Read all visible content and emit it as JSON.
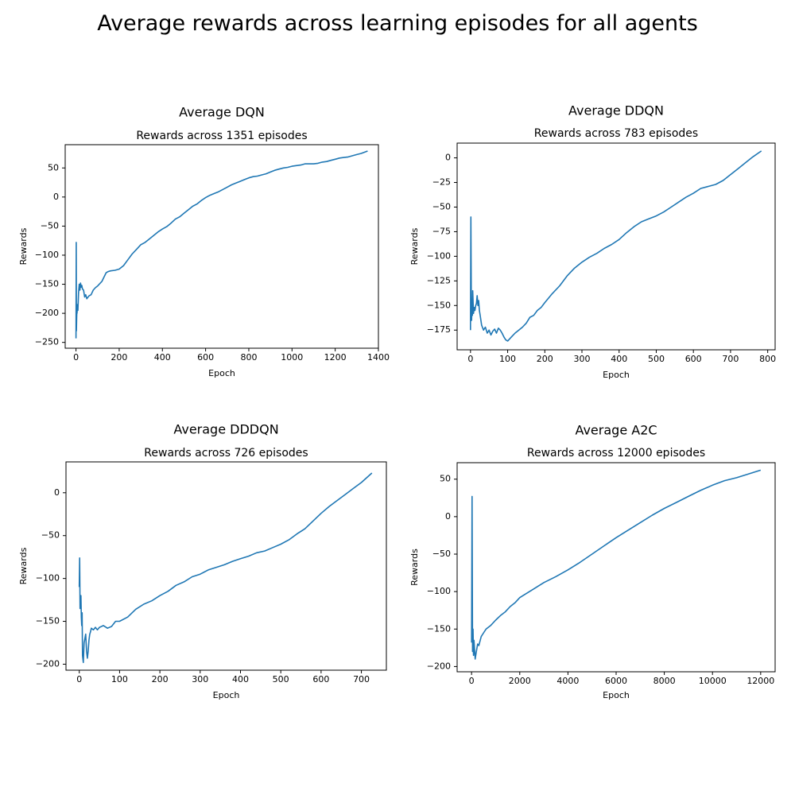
{
  "figure_title": "Average rewards across learning episodes for all agents",
  "colors": {
    "line": "#1f77b4",
    "axis": "#000000",
    "background": "#ffffff"
  },
  "chart_data": [
    {
      "type": "line",
      "suptitle": "Average DQN",
      "title": "Rewards across 1351 episodes",
      "xlabel": "Epoch",
      "ylabel": "Rewards",
      "xlim": [
        -50,
        1400
      ],
      "ylim": [
        -260,
        90
      ],
      "xticks": [
        0,
        200,
        400,
        600,
        800,
        1000,
        1200,
        1400
      ],
      "yticks": [
        -250,
        -200,
        -150,
        -100,
        -50,
        0,
        50
      ],
      "grid": false,
      "series": [
        {
          "x": [
            0,
            1,
            2,
            3,
            4,
            5,
            7,
            9,
            12,
            15,
            18,
            21,
            24,
            27,
            30,
            35,
            40,
            45,
            50,
            60,
            70,
            80,
            90,
            100,
            120,
            140,
            150,
            160,
            180,
            200,
            220,
            240,
            260,
            280,
            300,
            320,
            340,
            360,
            380,
            400,
            420,
            440,
            460,
            480,
            500,
            520,
            540,
            560,
            580,
            600,
            620,
            640,
            660,
            680,
            700,
            720,
            740,
            760,
            780,
            800,
            820,
            840,
            860,
            880,
            900,
            920,
            940,
            960,
            980,
            1000,
            1020,
            1040,
            1060,
            1080,
            1100,
            1120,
            1140,
            1160,
            1180,
            1200,
            1220,
            1240,
            1260,
            1280,
            1300,
            1320,
            1350
          ],
          "y": [
            -243,
            -78,
            -230,
            -210,
            -195,
            -200,
            -185,
            -195,
            -165,
            -150,
            -160,
            -148,
            -155,
            -152,
            -158,
            -160,
            -172,
            -168,
            -175,
            -170,
            -168,
            -160,
            -156,
            -153,
            -145,
            -130,
            -128,
            -127,
            -126,
            -124,
            -118,
            -108,
            -98,
            -90,
            -82,
            -78,
            -72,
            -66,
            -60,
            -55,
            -51,
            -45,
            -38,
            -34,
            -28,
            -22,
            -16,
            -12,
            -6,
            -1,
            3,
            6,
            9,
            13,
            17,
            21,
            24,
            27,
            30,
            33,
            35,
            36,
            38,
            40,
            43,
            46,
            48,
            50,
            51,
            53,
            54,
            55,
            57,
            57,
            57,
            58,
            60,
            61,
            63,
            65,
            67,
            68,
            69,
            71,
            73,
            75,
            79
          ]
        }
      ]
    },
    {
      "type": "line",
      "suptitle": "Average DDQN",
      "title": "Rewards across 783 episodes",
      "xlabel": "Epoch",
      "ylabel": "Rewards",
      "xlim": [
        -36,
        820
      ],
      "ylim": [
        -195,
        15
      ],
      "xticks": [
        0,
        100,
        200,
        300,
        400,
        500,
        600,
        700,
        800
      ],
      "yticks": [
        -175,
        -150,
        -125,
        -100,
        -75,
        -50,
        -25,
        0
      ],
      "grid": false,
      "series": [
        {
          "x": [
            0,
            1,
            2,
            3,
            4,
            5,
            6,
            8,
            10,
            12,
            14,
            16,
            18,
            20,
            22,
            24,
            26,
            28,
            30,
            35,
            40,
            45,
            50,
            55,
            60,
            65,
            70,
            75,
            80,
            85,
            90,
            95,
            100,
            110,
            120,
            130,
            140,
            150,
            160,
            170,
            180,
            190,
            200,
            220,
            240,
            260,
            280,
            300,
            320,
            340,
            360,
            380,
            400,
            420,
            440,
            460,
            480,
            500,
            520,
            540,
            560,
            580,
            600,
            620,
            640,
            660,
            680,
            700,
            720,
            740,
            760,
            783
          ],
          "y": [
            -175,
            -60,
            -140,
            -165,
            -148,
            -160,
            -135,
            -158,
            -152,
            -155,
            -150,
            -148,
            -140,
            -150,
            -145,
            -155,
            -160,
            -165,
            -170,
            -175,
            -172,
            -178,
            -175,
            -180,
            -176,
            -174,
            -178,
            -173,
            -175,
            -178,
            -182,
            -185,
            -186,
            -182,
            -178,
            -175,
            -172,
            -168,
            -162,
            -160,
            -155,
            -152,
            -147,
            -138,
            -130,
            -120,
            -112,
            -106,
            -101,
            -97,
            -92,
            -88,
            -83,
            -76,
            -70,
            -65,
            -62,
            -59,
            -55,
            -50,
            -45,
            -40,
            -36,
            -31,
            -29,
            -27,
            -23,
            -17,
            -11,
            -5,
            1,
            7
          ]
        }
      ]
    },
    {
      "type": "line",
      "suptitle": "Average DDDQN",
      "title": "Rewards across 726 episodes",
      "xlabel": "Epoch",
      "ylabel": "Rewards",
      "xlim": [
        -33,
        762
      ],
      "ylim": [
        -207,
        36
      ],
      "xticks": [
        0,
        100,
        200,
        300,
        400,
        500,
        600,
        700
      ],
      "yticks": [
        -200,
        -150,
        -100,
        -50,
        0
      ],
      "grid": false,
      "series": [
        {
          "x": [
            0,
            1,
            2,
            3,
            4,
            5,
            6,
            7,
            8,
            10,
            12,
            14,
            16,
            18,
            20,
            22,
            24,
            26,
            28,
            30,
            35,
            40,
            45,
            50,
            60,
            70,
            80,
            90,
            100,
            120,
            140,
            160,
            180,
            200,
            220,
            240,
            260,
            280,
            300,
            320,
            340,
            360,
            380,
            400,
            420,
            440,
            460,
            480,
            500,
            520,
            540,
            560,
            580,
            600,
            620,
            640,
            660,
            680,
            700,
            726
          ],
          "y": [
            -110,
            -76,
            -135,
            -125,
            -120,
            -145,
            -155,
            -140,
            -190,
            -198,
            -175,
            -170,
            -165,
            -185,
            -193,
            -185,
            -172,
            -165,
            -162,
            -158,
            -160,
            -157,
            -160,
            -157,
            -155,
            -158,
            -156,
            -150,
            -150,
            -145,
            -136,
            -130,
            -126,
            -120,
            -115,
            -108,
            -104,
            -98,
            -95,
            -90,
            -87,
            -84,
            -80,
            -77,
            -74,
            -70,
            -68,
            -64,
            -60,
            -55,
            -48,
            -42,
            -33,
            -24,
            -16,
            -9,
            -2,
            5,
            12,
            23
          ]
        }
      ]
    },
    {
      "type": "line",
      "suptitle": "Average A2C",
      "title": "Rewards across 12000 episodes",
      "xlabel": "Epoch",
      "ylabel": "Rewards",
      "xlim": [
        -600,
        12600
      ],
      "ylim": [
        -207,
        72
      ],
      "xticks": [
        0,
        2000,
        4000,
        6000,
        8000,
        10000,
        12000
      ],
      "yticks": [
        -200,
        -150,
        -100,
        -50,
        0,
        50
      ],
      "grid": false,
      "series": [
        {
          "x": [
            0,
            20,
            40,
            60,
            80,
            100,
            150,
            200,
            250,
            300,
            400,
            500,
            600,
            800,
            1000,
            1200,
            1400,
            1600,
            1800,
            2000,
            2200,
            2500,
            3000,
            3500,
            4000,
            4500,
            5000,
            5500,
            6000,
            6500,
            7000,
            7500,
            8000,
            8500,
            9000,
            9500,
            10000,
            10500,
            11000,
            11500,
            12000
          ],
          "y": [
            -168,
            27,
            -180,
            -150,
            -185,
            -165,
            -190,
            -180,
            -170,
            -172,
            -160,
            -155,
            -150,
            -145,
            -138,
            -132,
            -127,
            -120,
            -115,
            -108,
            -104,
            -98,
            -88,
            -80,
            -71,
            -61,
            -50,
            -39,
            -28,
            -18,
            -8,
            2,
            11,
            19,
            27,
            35,
            42,
            48,
            52,
            57,
            62
          ]
        }
      ]
    }
  ]
}
